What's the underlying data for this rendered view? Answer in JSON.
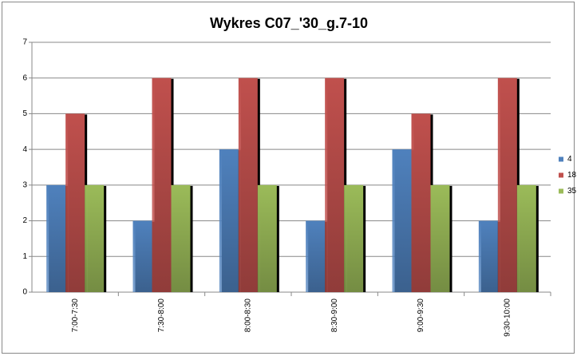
{
  "chart_data": {
    "type": "bar",
    "title": "Wykres C07_'30_g.7-10",
    "categories": [
      "7:00-7:30",
      "7:30-8:00",
      "8:00-8:30",
      "8:30-9:00",
      "9:00-9:30",
      "9:30-10:00"
    ],
    "series": [
      {
        "name": "4",
        "color": "#4f81bd",
        "values": [
          3,
          2,
          4,
          2,
          4,
          2
        ]
      },
      {
        "name": "18",
        "color": "#c0504d",
        "values": [
          5,
          6,
          6,
          6,
          5,
          6
        ]
      },
      {
        "name": "35",
        "color": "#9bbb59",
        "values": [
          3,
          3,
          3,
          3,
          3,
          3
        ]
      }
    ],
    "ylim": [
      0,
      7
    ],
    "yticks": [
      0,
      1,
      2,
      3,
      4,
      5,
      6,
      7
    ],
    "grid": true,
    "legend": "right"
  }
}
